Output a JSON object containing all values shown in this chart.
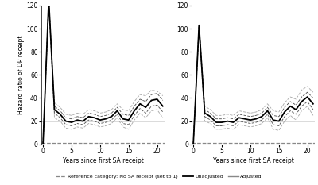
{
  "x": [
    0,
    1,
    2,
    3,
    4,
    5,
    6,
    7,
    8,
    9,
    10,
    11,
    12,
    13,
    14,
    15,
    16,
    17,
    18,
    19,
    20,
    21
  ],
  "left_center": [
    1,
    125,
    30,
    26,
    20,
    19,
    21,
    20,
    24,
    23,
    21,
    22,
    24,
    29,
    22,
    21,
    29,
    35,
    32,
    38,
    39,
    33
  ],
  "left_upper1": [
    1,
    125,
    33,
    29,
    23,
    22,
    24,
    23,
    27,
    26,
    24,
    25,
    27,
    32,
    26,
    25,
    33,
    39,
    37,
    43,
    44,
    38
  ],
  "left_lower1": [
    1,
    125,
    27,
    23,
    17,
    16,
    18,
    17,
    21,
    20,
    18,
    19,
    21,
    26,
    18,
    17,
    25,
    31,
    27,
    33,
    34,
    28
  ],
  "left_upper2": [
    1,
    125,
    36,
    32,
    26,
    25,
    27,
    26,
    30,
    29,
    27,
    28,
    30,
    35,
    30,
    29,
    37,
    43,
    42,
    47,
    46,
    42
  ],
  "left_lower2": [
    1,
    125,
    23,
    20,
    14,
    13,
    15,
    14,
    18,
    17,
    15,
    16,
    18,
    23,
    15,
    13,
    21,
    27,
    23,
    29,
    30,
    23
  ],
  "right_center": [
    1,
    103,
    27,
    24,
    19,
    19,
    20,
    19,
    23,
    22,
    21,
    22,
    24,
    29,
    21,
    20,
    28,
    33,
    30,
    37,
    41,
    35
  ],
  "right_upper1": [
    1,
    103,
    30,
    27,
    22,
    22,
    23,
    22,
    26,
    25,
    24,
    25,
    27,
    32,
    25,
    24,
    32,
    37,
    34,
    41,
    45,
    40
  ],
  "right_lower1": [
    1,
    103,
    24,
    21,
    16,
    16,
    17,
    16,
    20,
    19,
    18,
    19,
    21,
    26,
    17,
    16,
    24,
    29,
    26,
    33,
    37,
    30
  ],
  "right_upper2": [
    1,
    103,
    33,
    30,
    25,
    25,
    26,
    25,
    29,
    28,
    27,
    28,
    30,
    35,
    29,
    28,
    36,
    41,
    39,
    47,
    50,
    45
  ],
  "right_lower2": [
    1,
    103,
    20,
    18,
    13,
    13,
    14,
    13,
    17,
    16,
    15,
    16,
    18,
    23,
    13,
    12,
    20,
    25,
    21,
    29,
    33,
    25
  ],
  "ref_line": 1,
  "ylim": [
    0,
    120
  ],
  "yticks": [
    0,
    20,
    40,
    60,
    80,
    100,
    120
  ],
  "xticks": [
    0,
    5,
    10,
    15,
    20
  ],
  "xlabel": "Years since first SA receipt",
  "ylabel": "Hazard ratio of DP receipt",
  "legend_ref": "Reference category: No SA receipt (set to 1)",
  "legend_unadj": "Unadjusted",
  "legend_adj": "Adjusted",
  "center_color": "#000000",
  "ci1_color": "#555555",
  "ci2_color": "#aaaaaa",
  "ref_color": "#888888",
  "adj_color": "#888888",
  "background": "#ffffff",
  "grid_color": "#cccccc"
}
